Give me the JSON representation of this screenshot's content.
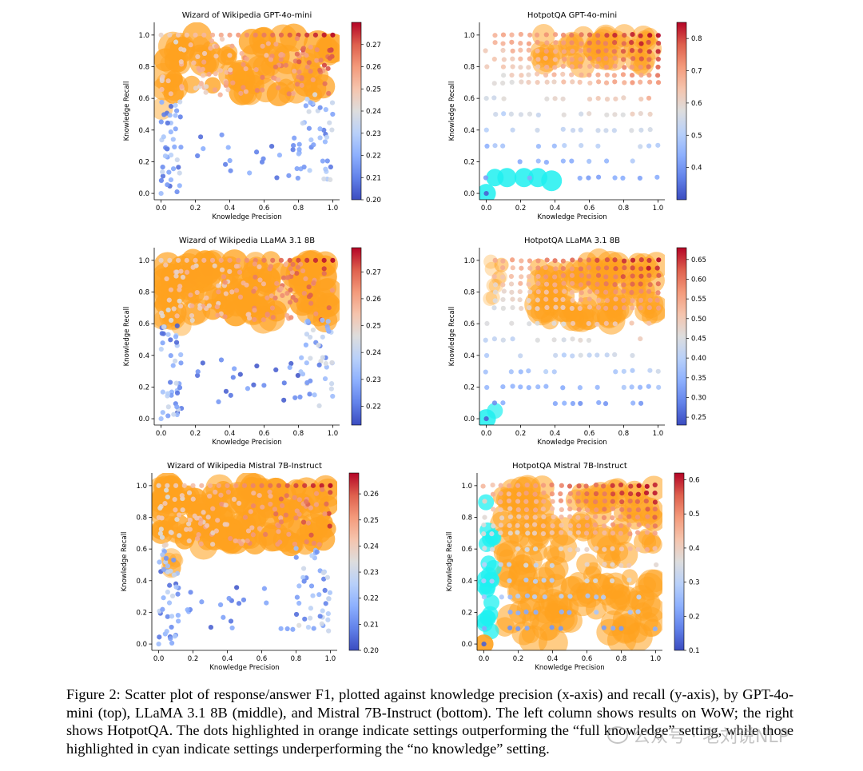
{
  "figure": {
    "caption": "Figure 2: Scatter plot of response/answer F1, plotted against knowledge precision (x-axis) and recall (y-axis), by GPT-4o-mini (top), LLaMA 3.1 8B (middle), and Mistral 7B-Instruct (bottom). The left column shows results on WoW; the right shows HotpotQA. The dots highlighted in orange indicate settings outperforming the “full knowledge” setting, while those highlighted in cyan indicate settings underperforming the “no knowledge” setting.",
    "watermark": "公众号 · 老刘说NLP",
    "highlight_colors": {
      "outperform": "#ffa21f",
      "underperform": "#1ff0f0"
    },
    "colormap": "coolwarm"
  },
  "chart_data": [
    {
      "type": "scatter",
      "title": "Wizard of Wikipedia GPT-4o-mini",
      "xlabel": "Knowledge Precision",
      "ylabel": "Knowledge Recall",
      "xlim": [
        -0.04,
        1.04
      ],
      "ylim": [
        -0.04,
        1.08
      ],
      "xticks": [
        "0.0",
        "0.2",
        "0.4",
        "0.6",
        "0.8",
        "1.0"
      ],
      "yticks": [
        "0.0",
        "0.2",
        "0.4",
        "0.6",
        "0.8",
        "1.0"
      ],
      "colorbar": {
        "min": 0.2,
        "max": 0.28,
        "ticks": [
          "0.20",
          "0.21",
          "0.22",
          "0.23",
          "0.24",
          "0.25",
          "0.26",
          "0.27"
        ]
      },
      "grid": false,
      "points_approx": true
    },
    {
      "type": "scatter",
      "title": "HotpotQA GPT-4o-mini",
      "xlabel": "Knowledge Precision",
      "ylabel": "Knowledge Recall",
      "xlim": [
        -0.04,
        1.04
      ],
      "ylim": [
        -0.04,
        1.08
      ],
      "xticks": [
        "0.0",
        "0.2",
        "0.4",
        "0.6",
        "0.8",
        "1.0"
      ],
      "yticks": [
        "0.0",
        "0.2",
        "0.4",
        "0.6",
        "0.8",
        "1.0"
      ],
      "colorbar": {
        "min": 0.3,
        "max": 0.85,
        "ticks": [
          "0.4",
          "0.5",
          "0.6",
          "0.7",
          "0.8"
        ]
      },
      "grid": false,
      "points_approx": true
    },
    {
      "type": "scatter",
      "title": "Wizard of Wikipedia LLaMA 3.1 8B",
      "xlabel": "Knowledge Precision",
      "ylabel": "Knowledge Recall",
      "xlim": [
        -0.04,
        1.04
      ],
      "ylim": [
        -0.04,
        1.08
      ],
      "xticks": [
        "0.0",
        "0.2",
        "0.4",
        "0.6",
        "0.8",
        "1.0"
      ],
      "yticks": [
        "0.0",
        "0.2",
        "0.4",
        "0.6",
        "0.8",
        "1.0"
      ],
      "colorbar": {
        "min": 0.213,
        "max": 0.279,
        "ticks": [
          "0.22",
          "0.23",
          "0.24",
          "0.25",
          "0.26",
          "0.27"
        ]
      },
      "grid": false,
      "points_approx": true
    },
    {
      "type": "scatter",
      "title": "HotpotQA LLaMA 3.1 8B",
      "xlabel": "Knowledge Precision",
      "ylabel": "Knowledge Recall",
      "xlim": [
        -0.04,
        1.04
      ],
      "ylim": [
        -0.04,
        1.08
      ],
      "xticks": [
        "0.0",
        "0.2",
        "0.4",
        "0.6",
        "0.8",
        "1.0"
      ],
      "yticks": [
        "0.0",
        "0.2",
        "0.4",
        "0.6",
        "0.8",
        "1.0"
      ],
      "colorbar": {
        "min": 0.23,
        "max": 0.68,
        "ticks": [
          "0.25",
          "0.30",
          "0.35",
          "0.40",
          "0.45",
          "0.50",
          "0.55",
          "0.60",
          "0.65"
        ]
      },
      "grid": false,
      "points_approx": true
    },
    {
      "type": "scatter",
      "title": "Wizard of Wikipedia Mistral 7B-Instruct",
      "xlabel": "Knowledge Precision",
      "ylabel": "Knowledge Recall",
      "xlim": [
        -0.04,
        1.04
      ],
      "ylim": [
        -0.04,
        1.08
      ],
      "xticks": [
        "0.0",
        "0.2",
        "0.4",
        "0.6",
        "0.8",
        "1.0"
      ],
      "yticks": [
        "0.0",
        "0.2",
        "0.4",
        "0.6",
        "0.8",
        "1.0"
      ],
      "colorbar": {
        "min": 0.2,
        "max": 0.268,
        "ticks": [
          "0.20",
          "0.21",
          "0.22",
          "0.23",
          "0.24",
          "0.25",
          "0.26"
        ]
      },
      "grid": false,
      "points_approx": true
    },
    {
      "type": "scatter",
      "title": "HotpotQA Mistral 7B-Instruct",
      "xlabel": "Knowledge Precision",
      "ylabel": "Knowledge Recall",
      "xlim": [
        -0.04,
        1.04
      ],
      "ylim": [
        -0.04,
        1.08
      ],
      "xticks": [
        "0.0",
        "0.2",
        "0.4",
        "0.6",
        "0.8",
        "1.0"
      ],
      "yticks": [
        "0.0",
        "0.2",
        "0.4",
        "0.6",
        "0.8",
        "1.0"
      ],
      "colorbar": {
        "min": 0.1,
        "max": 0.62,
        "ticks": [
          "0.1",
          "0.2",
          "0.3",
          "0.4",
          "0.5",
          "0.6"
        ]
      },
      "grid": false,
      "points_approx": true
    }
  ]
}
